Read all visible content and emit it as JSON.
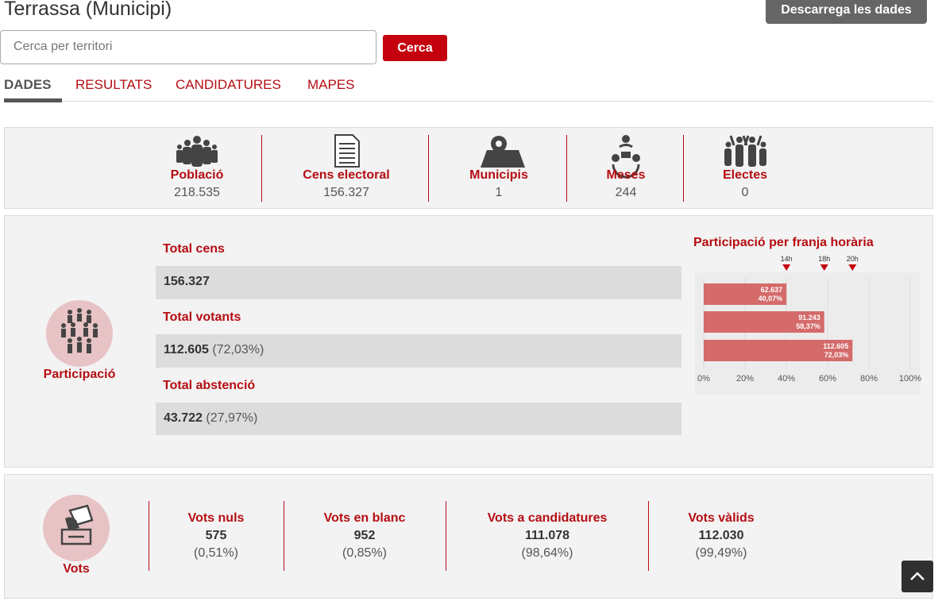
{
  "header": {
    "title": "Terrassa (Municipi)",
    "download": "Descarrega les dades"
  },
  "search": {
    "placeholder": "Cerca per territori",
    "button": "Cerca"
  },
  "tabs": [
    "DADES",
    "RESULTATS",
    "CANDIDATURES",
    "MAPES"
  ],
  "summary": [
    {
      "label": "Població",
      "value": "218.535"
    },
    {
      "label": "Cens electoral",
      "value": "156.327"
    },
    {
      "label": "Municipis",
      "value": "1"
    },
    {
      "label": "Meses",
      "value": "244"
    },
    {
      "label": "Electes",
      "value": "0"
    }
  ],
  "participation": {
    "title": "Participació",
    "rows": [
      {
        "label": "Total cens",
        "value": "156.327"
      },
      {
        "label": "Total votants",
        "value": "112.605",
        "pct": "(72,03%)"
      },
      {
        "label": "Total abstenció",
        "value": "43.722",
        "pct": "(27,97%)"
      }
    ]
  },
  "hourly": {
    "title": "Participació per franja horària",
    "markers": [
      "14h",
      "18h",
      "20h"
    ],
    "values": [
      40.07,
      58.37,
      72.03
    ],
    "value_labels": [
      [
        "62.637",
        "40,07%"
      ],
      [
        "91.243",
        "58,37%"
      ],
      [
        "112.605",
        "72,03%"
      ]
    ],
    "xlim": [
      0,
      100
    ],
    "xticks": [
      {
        "value": 0,
        "label": "0%"
      },
      {
        "value": 20,
        "label": "20%"
      },
      {
        "value": 40,
        "label": "40%"
      },
      {
        "value": 60,
        "label": "60%"
      },
      {
        "value": 80,
        "label": "80%"
      },
      {
        "value": 100,
        "label": "100%"
      }
    ],
    "color": "#d46a6a"
  },
  "votes": {
    "title": "Vots",
    "items": [
      {
        "label": "Vots nuls",
        "value": "575",
        "pct": "(0,51%)"
      },
      {
        "label": "Vots en blanc",
        "value": "952",
        "pct": "(0,85%)"
      },
      {
        "label": "Vots a candidatures",
        "value": "111.078",
        "pct": "(98,64%)"
      },
      {
        "label": "Vots vàlids",
        "value": "112.030",
        "pct": "(99,49%)"
      }
    ]
  }
}
